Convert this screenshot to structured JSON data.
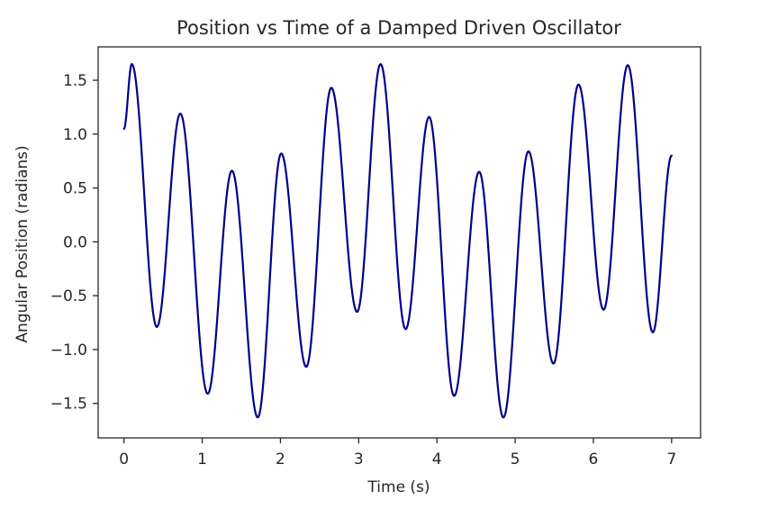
{
  "chart_data": {
    "type": "line",
    "title": "Position vs Time of a Damped Driven Oscillator",
    "xlabel": "Time (s)",
    "ylabel": "Angular Position (radians)",
    "xlim": [
      -0.33,
      7.37
    ],
    "ylim": [
      -1.82,
      1.81
    ],
    "xticks": [
      0,
      1,
      2,
      3,
      4,
      5,
      6,
      7
    ],
    "xtick_labels": [
      "0",
      "1",
      "2",
      "3",
      "4",
      "5",
      "6",
      "7"
    ],
    "yticks": [
      -1.5,
      -1.0,
      -0.5,
      0.0,
      0.5,
      1.0,
      1.5
    ],
    "ytick_labels": [
      "−1.5",
      "−1.0",
      "−0.5",
      "0.0",
      "0.5",
      "1.0",
      "1.5"
    ],
    "grid": false,
    "series": [
      {
        "color": "#00008b",
        "x": [
          0.0,
          0.1,
          0.42,
          0.72,
          1.07,
          1.38,
          1.71,
          2.01,
          2.33,
          2.65,
          2.98,
          3.28,
          3.6,
          3.9,
          4.22,
          4.54,
          4.85,
          5.17,
          5.49,
          5.81,
          6.13,
          6.44,
          6.76,
          7.0
        ],
        "y": [
          1.05,
          1.65,
          -0.79,
          1.19,
          -1.41,
          0.66,
          -1.63,
          0.82,
          -1.16,
          1.43,
          -0.65,
          1.65,
          -0.81,
          1.16,
          -1.43,
          0.65,
          -1.63,
          0.84,
          -1.13,
          1.46,
          -0.63,
          1.64,
          -0.84,
          0.8
        ]
      }
    ]
  }
}
